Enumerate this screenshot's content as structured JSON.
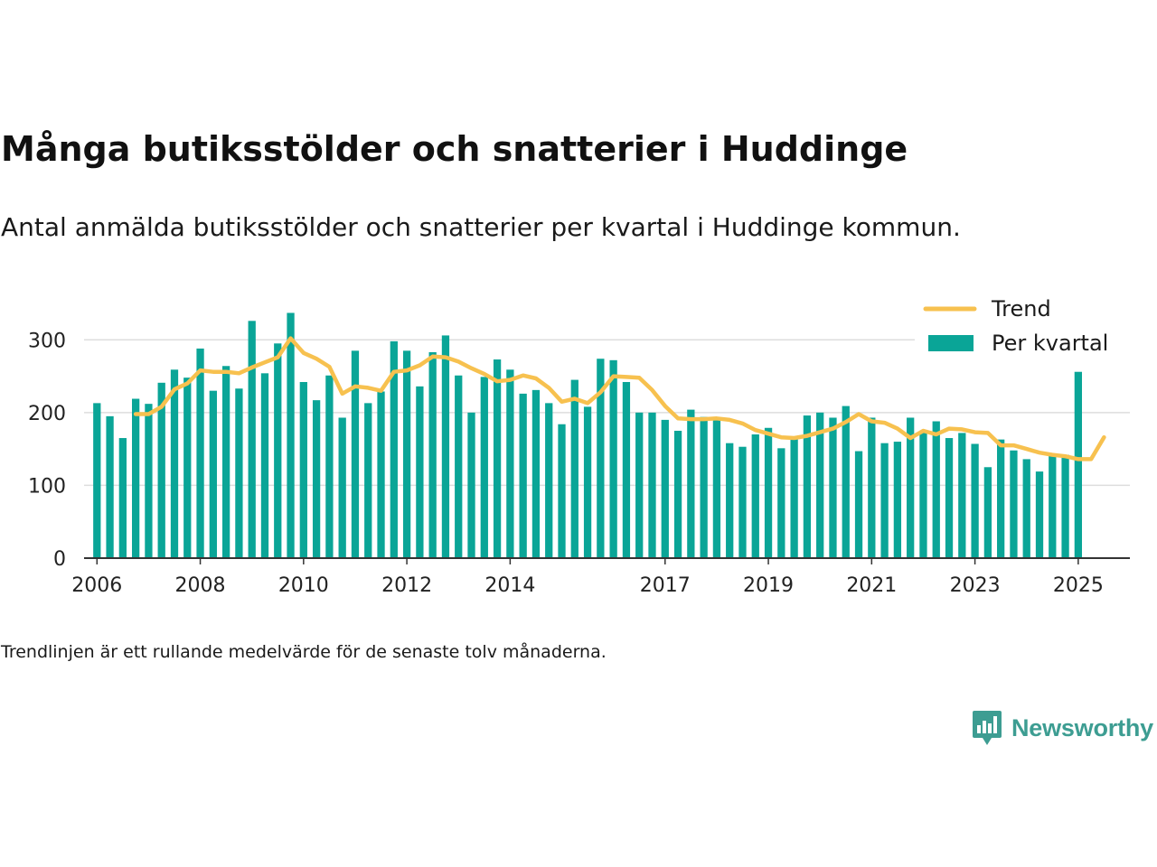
{
  "header": {
    "title": "Många butiksstölder och snatterier i Huddinge",
    "subtitle": "Antal anmälda butiksstölder och snatterier per kvartal i Huddinge kommun."
  },
  "footer": {
    "note": "Trendlinjen är ett rullande medelvärde för de senaste tolv månaderna.",
    "brand": "Newsworthy",
    "brand_icon": "bar-chart-logo-icon"
  },
  "colors": {
    "bars": "#0aa597",
    "trend": "#f7c14f",
    "grid": "#dddddd",
    "axis": "#333333",
    "brand": "#3d9d92"
  },
  "chart_data": {
    "type": "bar",
    "x_start": 2006.0,
    "x_step": 0.25,
    "xlim": [
      2005.75,
      2026.0
    ],
    "ylim": [
      0,
      345
    ],
    "yticks": [
      0,
      100,
      200,
      300
    ],
    "xticks": [
      2006,
      2008,
      2010,
      2012,
      2014,
      2017,
      2019,
      2021,
      2023,
      2025
    ],
    "grid": true,
    "legend_position": "top-right",
    "series": [
      {
        "name": "Per kvartal",
        "type": "bar",
        "values": [
          213,
          195,
          165,
          219,
          212,
          241,
          259,
          248,
          288,
          230,
          264,
          233,
          326,
          254,
          295,
          337,
          242,
          217,
          251,
          193,
          285,
          213,
          229,
          298,
          285,
          236,
          283,
          306,
          251,
          200,
          249,
          273,
          259,
          226,
          231,
          213,
          184,
          245,
          208,
          274,
          272,
          242,
          200,
          200,
          190,
          175,
          204,
          194,
          193,
          158,
          153,
          170,
          179,
          151,
          167,
          196,
          200,
          193,
          209,
          147,
          193,
          158,
          160,
          193,
          172,
          188,
          165,
          172,
          157,
          125,
          163,
          148,
          136,
          119,
          142,
          142,
          256
        ]
      },
      {
        "name": "Trend",
        "type": "line",
        "x_start": 2006.75,
        "values": [
          198,
          198,
          208,
          232,
          240,
          258,
          256,
          256,
          254,
          262,
          269,
          276,
          302,
          282,
          274,
          263,
          226,
          236,
          234,
          230,
          256,
          258,
          265,
          277,
          276,
          270,
          261,
          253,
          243,
          245,
          251,
          247,
          234,
          215,
          219,
          213,
          228,
          250,
          249,
          248,
          231,
          209,
          192,
          191,
          191,
          192,
          190,
          185,
          176,
          171,
          166,
          165,
          168,
          173,
          178,
          187,
          198,
          188,
          186,
          178,
          165,
          175,
          170,
          178,
          177,
          173,
          172,
          155,
          155,
          150,
          145,
          142,
          140,
          136,
          136,
          166
        ]
      }
    ]
  }
}
